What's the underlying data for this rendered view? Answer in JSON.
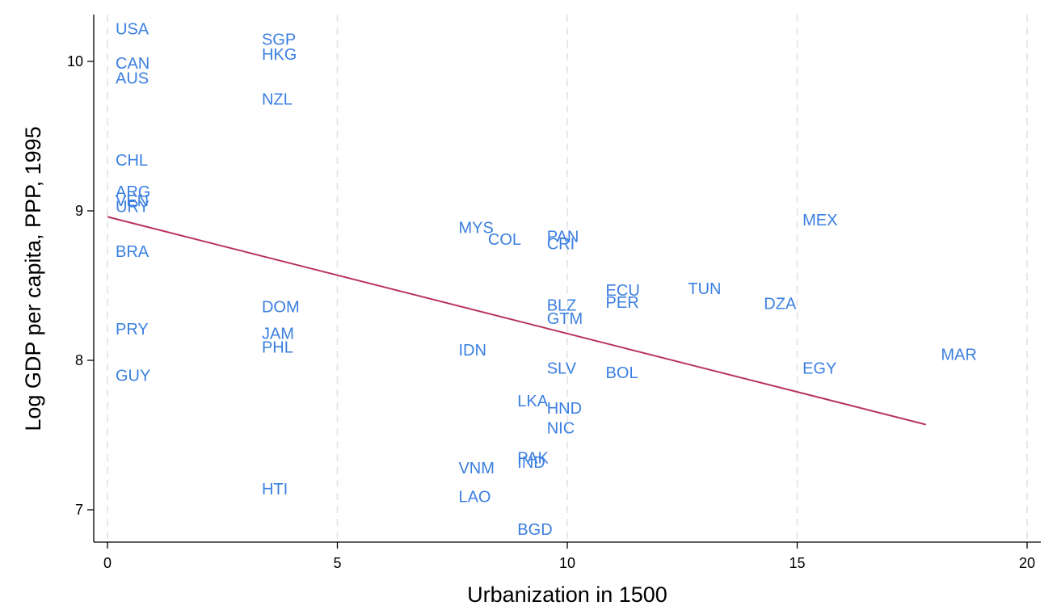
{
  "chart_data": {
    "type": "scatter",
    "xlabel": "Urbanization in 1500",
    "ylabel": "Log GDP per capita, PPP, 1995",
    "xlim": [
      0,
      20
    ],
    "ylim": [
      6.78,
      10.3
    ],
    "xticks": [
      0,
      5,
      10,
      15,
      20
    ],
    "yticks": [
      7,
      8,
      9,
      10
    ],
    "grid": "vertical dashed",
    "marker": "text label",
    "colors": {
      "points": "#3b7fe0",
      "fit_line": "#b83262"
    },
    "points": [
      {
        "label": "USA",
        "x": 0,
        "y": 10.22
      },
      {
        "label": "CAN",
        "x": 0,
        "y": 9.99
      },
      {
        "label": "AUS",
        "x": 0,
        "y": 9.89
      },
      {
        "label": "CHL",
        "x": 0,
        "y": 9.34
      },
      {
        "label": "ARG",
        "x": 0,
        "y": 9.13
      },
      {
        "label": "VEN",
        "x": 0,
        "y": 9.07
      },
      {
        "label": "URY",
        "x": 0,
        "y": 9.03
      },
      {
        "label": "BRA",
        "x": 0,
        "y": 8.73
      },
      {
        "label": "PRY",
        "x": 0,
        "y": 8.21
      },
      {
        "label": "GUY",
        "x": 0,
        "y": 7.9
      },
      {
        "label": "SGP",
        "x": 3.18,
        "y": 10.15
      },
      {
        "label": "HKG",
        "x": 3.18,
        "y": 10.05
      },
      {
        "label": "NZL",
        "x": 3.18,
        "y": 9.75
      },
      {
        "label": "DOM",
        "x": 3.18,
        "y": 8.36
      },
      {
        "label": "JAM",
        "x": 3.18,
        "y": 8.18
      },
      {
        "label": "PHL",
        "x": 3.18,
        "y": 8.09
      },
      {
        "label": "HTI",
        "x": 3.18,
        "y": 7.14
      },
      {
        "label": "MYS",
        "x": 7.46,
        "y": 8.89
      },
      {
        "label": "COL",
        "x": 8.1,
        "y": 8.81
      },
      {
        "label": "IDN",
        "x": 7.46,
        "y": 8.07
      },
      {
        "label": "VNM",
        "x": 7.46,
        "y": 7.28
      },
      {
        "label": "LAO",
        "x": 7.46,
        "y": 7.09
      },
      {
        "label": "LKA",
        "x": 8.74,
        "y": 7.73
      },
      {
        "label": "PAK",
        "x": 8.74,
        "y": 7.35
      },
      {
        "label": "IND",
        "x": 8.74,
        "y": 7.32
      },
      {
        "label": "BGD",
        "x": 8.74,
        "y": 6.87
      },
      {
        "label": "PAN",
        "x": 9.38,
        "y": 8.83
      },
      {
        "label": "CRI",
        "x": 9.38,
        "y": 8.78
      },
      {
        "label": "BLZ",
        "x": 9.38,
        "y": 8.37
      },
      {
        "label": "GTM",
        "x": 9.38,
        "y": 8.28
      },
      {
        "label": "SLV",
        "x": 9.38,
        "y": 7.95
      },
      {
        "label": "HND",
        "x": 9.38,
        "y": 7.68
      },
      {
        "label": "NIC",
        "x": 9.38,
        "y": 7.55
      },
      {
        "label": "ECU",
        "x": 10.66,
        "y": 8.47
      },
      {
        "label": "PER",
        "x": 10.66,
        "y": 8.39
      },
      {
        "label": "BOL",
        "x": 10.66,
        "y": 7.92
      },
      {
        "label": "TUN",
        "x": 12.45,
        "y": 8.48
      },
      {
        "label": "DZA",
        "x": 14.1,
        "y": 8.38
      },
      {
        "label": "MEX",
        "x": 14.94,
        "y": 8.94
      },
      {
        "label": "EGY",
        "x": 14.94,
        "y": 7.95
      },
      {
        "label": "MAR",
        "x": 17.95,
        "y": 8.04
      }
    ],
    "fit_line": {
      "x": [
        0,
        17.8
      ],
      "y": [
        8.96,
        7.57
      ]
    }
  }
}
